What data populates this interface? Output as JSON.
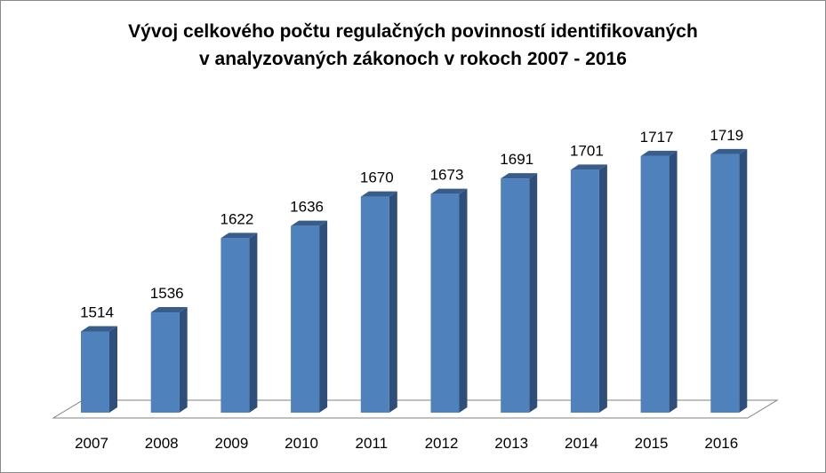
{
  "chart_data": {
    "type": "bar",
    "title_lines": [
      "Vývoj celkového počtu regulačných povinností identifikovaných",
      "v analyzovaných zákonoch v rokoch 2007 - 2016"
    ],
    "categories": [
      "2007",
      "2008",
      "2009",
      "2010",
      "2011",
      "2012",
      "2013",
      "2014",
      "2015",
      "2016"
    ],
    "values": [
      1514,
      1536,
      1622,
      1636,
      1670,
      1673,
      1691,
      1701,
      1717,
      1719
    ],
    "data_labels": [
      "1514",
      "1536",
      "1622",
      "1636",
      "1670",
      "1673",
      "1691",
      "1701",
      "1717",
      "1719"
    ],
    "xlabel": "",
    "ylabel": "",
    "ylim": [
      1420,
      1800
    ],
    "grid": false,
    "legend": "none",
    "three_d": true,
    "colors": {
      "bar_front": "#4F81BD",
      "bar_side": "#2F4F7A",
      "bar_top": "#385D8A",
      "floor_stroke": "#808080"
    }
  }
}
